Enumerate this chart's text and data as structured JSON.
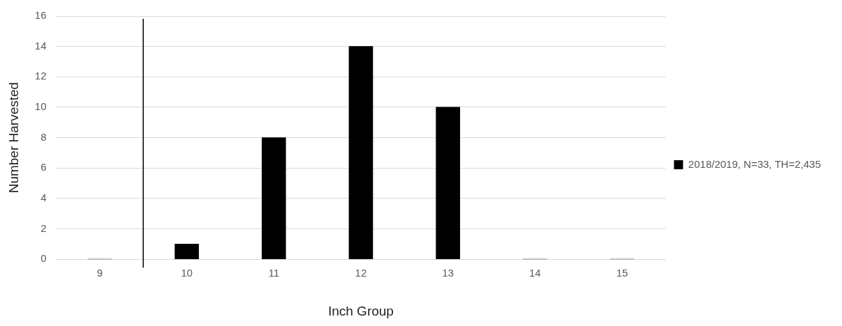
{
  "chart_data": {
    "type": "bar",
    "xlabel": "Inch Group",
    "ylabel": "Number Harvested",
    "x": [
      9,
      10,
      11,
      12,
      13,
      14,
      15
    ],
    "xlim": [
      8.5,
      15.5
    ],
    "xticks": [
      9,
      10,
      11,
      12,
      13,
      14,
      15
    ],
    "ylim": [
      0,
      16
    ],
    "yticks": [
      0,
      2,
      4,
      6,
      8,
      10,
      12,
      14,
      16
    ],
    "series": [
      {
        "name": "2018/2019, N=33, TH=2,435",
        "color": "#000000",
        "values": [
          0,
          1,
          8,
          14,
          10,
          0,
          0
        ]
      }
    ],
    "ref_lines": [
      {
        "axis": "x",
        "value": 9.5,
        "color": "#000000"
      }
    ],
    "grid": "y",
    "legend": "right"
  }
}
